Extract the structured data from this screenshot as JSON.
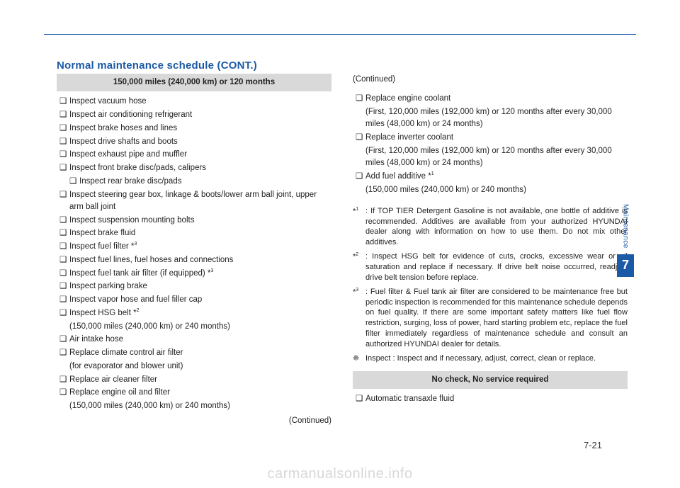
{
  "section_title": "Normal maintenance schedule (CONT.)",
  "left": {
    "header": "150,000 miles (240,000 km) or 120 months",
    "items": [
      {
        "t": "Inspect vacuum hose"
      },
      {
        "t": "Inspect air conditioning refrigerant"
      },
      {
        "t": "Inspect brake hoses and lines"
      },
      {
        "t": "Inspect drive shafts and boots"
      },
      {
        "t": "Inspect exhaust pipe and muffler"
      },
      {
        "t": "Inspect front brake disc/pads, calipers"
      },
      {
        "t": "Inspect rear brake disc/pads",
        "indent": true
      },
      {
        "t": "Inspect steering gear box, linkage & boots/lower arm ball joint, upper arm ball joint"
      },
      {
        "t": "Inspect suspension mounting bolts"
      },
      {
        "t": "Inspect brake fluid"
      },
      {
        "t": "Inspect fuel filter *",
        "sup": "3"
      },
      {
        "t": "Inspect fuel lines, fuel hoses and connections"
      },
      {
        "t": "Inspect fuel tank air filter (if equipped) *",
        "sup": "3"
      },
      {
        "t": "Inspect parking brake"
      },
      {
        "t": "Inspect vapor hose and fuel filler cap"
      },
      {
        "t": "Inspect HSG belt *",
        "sup": "2",
        "sub": "(150,000 miles (240,000 km) or 240 months)"
      },
      {
        "t": "Air intake hose"
      },
      {
        "t": "Replace climate control air filter",
        "sub": "(for evaporator and blower unit)"
      },
      {
        "t": "Replace air cleaner filter"
      },
      {
        "t": "Replace engine oil and filter",
        "sub": "(150,000 miles (240,000 km) or 240 months)"
      }
    ],
    "continued": "(Continued)"
  },
  "right": {
    "continued": "(Continued)",
    "items": [
      {
        "t": "Replace engine coolant",
        "sub": "(First, 120,000 miles (192,000 km) or 120 months after every 30,000 miles (48,000 km) or 24 months)"
      },
      {
        "t": "Replace inverter coolant",
        "sub": "(First, 120,000 miles (192,000 km) or 120 months after every 30,000 miles (48,000 km) or 24 months)"
      },
      {
        "t": "Add fuel additive *",
        "sup": "1",
        "sub": "(150,000 miles (240,000 km) or 240 months)"
      }
    ],
    "footnotes": [
      {
        "mark": "*",
        "sup": "1",
        "body": ": If TOP TIER Detergent Gasoline is not available, one bottle of additive is recommended. Additives are available from your authorized HYUNDAI dealer along with information on how to use them. Do not mix other additives."
      },
      {
        "mark": "*",
        "sup": "2",
        "body": ": Inspect HSG belt for evidence of cuts, crocks, excessive wear or oil saturation and replace if necessary. If drive belt noise occurred, readjust drive belt tension before replace."
      },
      {
        "mark": "*",
        "sup": "3",
        "body": ": Fuel filter & Fuel tank air filter are considered to be maintenance free but periodic inspection is recommended for this maintenance schedule depends on fuel quality. If there are some important safety matters like fuel flow restriction, surging, loss of power, hard starting problem etc, replace the fuel filter immediately regardless of maintenance schedule and consult an authorized HYUNDAI dealer for details."
      },
      {
        "mark": "❈",
        "body": "Inspect : Inspect and if necessary, adjust, correct, clean or replace."
      }
    ],
    "no_check_header": "No check, No service required",
    "no_check_items": [
      {
        "t": "Automatic transaxle fluid"
      }
    ]
  },
  "side": {
    "label": "Maintenance",
    "num": "7"
  },
  "page_number": "7-21",
  "watermark": "carmanualsonline.info",
  "bullet": "❑"
}
